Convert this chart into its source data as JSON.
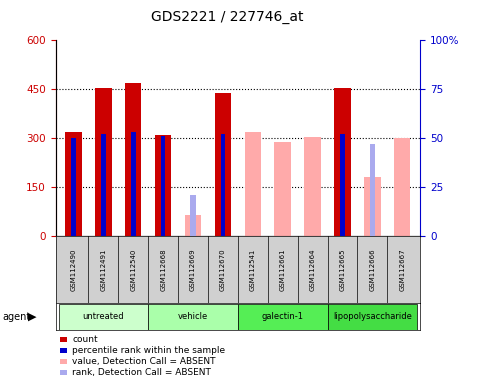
{
  "title": "GDS2221 / 227746_at",
  "samples": [
    "GSM112490",
    "GSM112491",
    "GSM112540",
    "GSM112668",
    "GSM112669",
    "GSM112670",
    "GSM112541",
    "GSM112661",
    "GSM112664",
    "GSM112665",
    "GSM112666",
    "GSM112667"
  ],
  "groups": [
    {
      "label": "untreated",
      "indices": [
        0,
        1,
        2
      ],
      "color": "#ccffcc"
    },
    {
      "label": "vehicle",
      "indices": [
        3,
        4,
        5
      ],
      "color": "#aaffaa"
    },
    {
      "label": "galectin-1",
      "indices": [
        6,
        7,
        8
      ],
      "color": "#55ee55"
    },
    {
      "label": "lipopolysaccharide",
      "indices": [
        9,
        10,
        11
      ],
      "color": "#44dd44"
    }
  ],
  "count_values": [
    320,
    455,
    470,
    310,
    null,
    440,
    null,
    null,
    null,
    453,
    null,
    null
  ],
  "percentile_values": [
    50,
    52,
    53,
    51,
    null,
    52,
    null,
    null,
    null,
    52,
    null,
    null
  ],
  "absent_value_values": [
    null,
    null,
    null,
    null,
    65,
    null,
    320,
    290,
    305,
    null,
    180,
    300
  ],
  "absent_rank_values": [
    null,
    null,
    null,
    null,
    125,
    null,
    null,
    null,
    null,
    null,
    285,
    null
  ],
  "absent_value_pct": [
    null,
    null,
    null,
    null,
    null,
    null,
    50,
    48,
    50,
    null,
    30,
    50
  ],
  "absent_rank_pct": [
    null,
    null,
    null,
    null,
    21,
    null,
    null,
    null,
    null,
    null,
    47,
    null
  ],
  "ylim_left": [
    0,
    600
  ],
  "ylim_right": [
    0,
    100
  ],
  "yticks_left": [
    0,
    150,
    300,
    450,
    600
  ],
  "yticks_right": [
    0,
    25,
    50,
    75,
    100
  ],
  "left_color": "#cc0000",
  "right_color": "#0000cc",
  "count_color": "#cc0000",
  "percentile_color": "#0000cc",
  "absent_value_color": "#ffaaaa",
  "absent_rank_color": "#aaaaee",
  "bg_color": "#ffffff",
  "legend_items": [
    {
      "label": "count",
      "color": "#cc0000"
    },
    {
      "label": "percentile rank within the sample",
      "color": "#0000cc"
    },
    {
      "label": "value, Detection Call = ABSENT",
      "color": "#ffaaaa"
    },
    {
      "label": "rank, Detection Call = ABSENT",
      "color": "#aaaaee"
    }
  ]
}
